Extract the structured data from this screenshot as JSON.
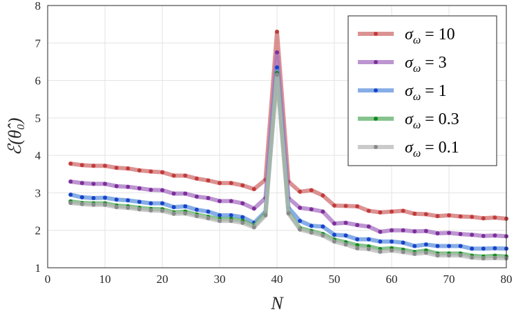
{
  "chart_data": {
    "type": "line",
    "title": "",
    "xlabel": "N",
    "ylabel": "ℰ(θ̂₀)",
    "xlim": [
      0,
      80
    ],
    "ylim": [
      1,
      8
    ],
    "xticks": [
      "0",
      "10",
      "20",
      "30",
      "40",
      "50",
      "60",
      "70",
      "80"
    ],
    "yticks": [
      "1",
      "2",
      "3",
      "4",
      "5",
      "6",
      "7",
      "8"
    ],
    "grid": true,
    "legend_position": "top-right",
    "x": [
      4,
      6,
      8,
      10,
      12,
      14,
      16,
      18,
      20,
      22,
      24,
      26,
      28,
      30,
      32,
      34,
      36,
      38,
      40,
      42,
      44,
      46,
      48,
      50,
      52,
      54,
      56,
      58,
      60,
      62,
      64,
      66,
      68,
      70,
      72,
      74,
      76,
      78,
      80
    ],
    "series": [
      {
        "name": "σω = 10",
        "legend_main": "σ",
        "legend_sub": "ω",
        "legend_val": " = 10",
        "color": "#d06e6e",
        "dot": "#c23b3b",
        "values": [
          3.78,
          3.74,
          3.72,
          3.72,
          3.67,
          3.65,
          3.6,
          3.57,
          3.55,
          3.46,
          3.46,
          3.38,
          3.33,
          3.26,
          3.26,
          3.2,
          3.1,
          3.35,
          7.3,
          3.3,
          3.03,
          3.07,
          2.93,
          2.66,
          2.65,
          2.64,
          2.52,
          2.48,
          2.5,
          2.52,
          2.44,
          2.43,
          2.38,
          2.4,
          2.37,
          2.36,
          2.32,
          2.34,
          2.31
        ]
      },
      {
        "name": "σω = 3",
        "legend_main": "σ",
        "legend_sub": "ω",
        "legend_val": " = 3",
        "color": "#a772c2",
        "dot": "#7e2f9b",
        "values": [
          3.3,
          3.26,
          3.24,
          3.24,
          3.18,
          3.16,
          3.12,
          3.08,
          3.07,
          2.98,
          2.98,
          2.9,
          2.86,
          2.78,
          2.78,
          2.72,
          2.58,
          2.86,
          6.75,
          2.86,
          2.6,
          2.56,
          2.5,
          2.18,
          2.2,
          2.14,
          2.1,
          1.96,
          2.0,
          2.0,
          1.97,
          1.98,
          1.92,
          1.93,
          1.9,
          1.88,
          1.85,
          1.86,
          1.84
        ]
      },
      {
        "name": "σω = 1",
        "legend_main": "σ",
        "legend_sub": "ω",
        "legend_val": " = 1",
        "color": "#5f92dd",
        "dot": "#1744c8",
        "values": [
          2.95,
          2.88,
          2.86,
          2.87,
          2.82,
          2.8,
          2.76,
          2.72,
          2.72,
          2.62,
          2.64,
          2.55,
          2.5,
          2.4,
          2.4,
          2.35,
          2.2,
          2.5,
          6.35,
          2.6,
          2.25,
          2.12,
          2.1,
          1.88,
          1.86,
          1.76,
          1.76,
          1.7,
          1.7,
          1.67,
          1.58,
          1.62,
          1.58,
          1.58,
          1.58,
          1.51,
          1.51,
          1.52,
          1.51
        ]
      },
      {
        "name": "σω = 0.3",
        "legend_main": "σ",
        "legend_sub": "ω",
        "legend_val": " = 0.3",
        "color": "#5daf67",
        "dot": "#138a1e",
        "values": [
          2.77,
          2.73,
          2.72,
          2.72,
          2.66,
          2.64,
          2.6,
          2.57,
          2.56,
          2.48,
          2.5,
          2.42,
          2.36,
          2.3,
          2.3,
          2.25,
          2.12,
          2.45,
          6.2,
          2.48,
          2.06,
          1.98,
          1.9,
          1.75,
          1.68,
          1.6,
          1.57,
          1.5,
          1.52,
          1.48,
          1.42,
          1.46,
          1.38,
          1.38,
          1.38,
          1.32,
          1.3,
          1.32,
          1.3
        ]
      },
      {
        "name": "σω = 0.1",
        "legend_main": "σ",
        "legend_sub": "ω",
        "legend_val": " = 0.1",
        "color": "#b8b8b8",
        "dot": "#8a8a8a",
        "values": [
          2.73,
          2.7,
          2.68,
          2.68,
          2.62,
          2.6,
          2.56,
          2.53,
          2.52,
          2.44,
          2.45,
          2.38,
          2.32,
          2.25,
          2.25,
          2.2,
          2.08,
          2.4,
          6.15,
          2.45,
          2.02,
          1.94,
          1.86,
          1.7,
          1.62,
          1.52,
          1.5,
          1.43,
          1.46,
          1.42,
          1.37,
          1.4,
          1.33,
          1.33,
          1.33,
          1.27,
          1.25,
          1.26,
          1.25
        ]
      }
    ]
  }
}
